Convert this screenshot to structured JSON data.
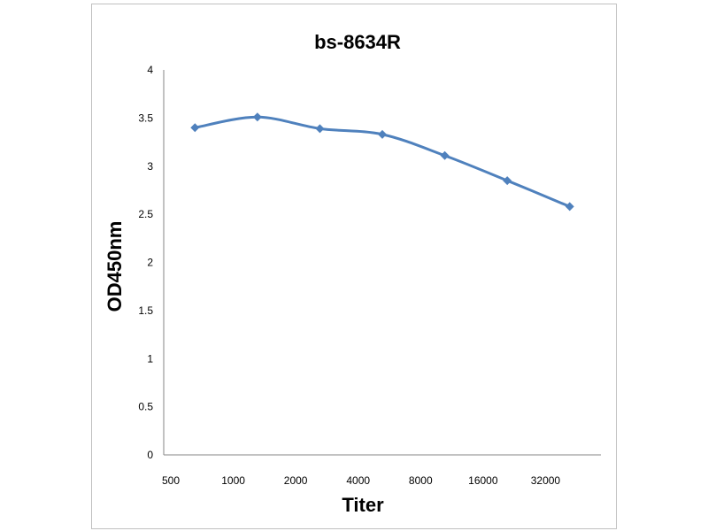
{
  "chart_data": {
    "type": "line",
    "title": "bs-8634R",
    "xlabel": "Titer",
    "ylabel": "OD450nm",
    "categories": [
      "500",
      "1000",
      "2000",
      "4000",
      "8000",
      "16000",
      "32000"
    ],
    "series": [
      {
        "values": [
          3.4,
          3.51,
          3.39,
          3.33,
          3.11,
          2.85,
          2.58
        ]
      }
    ],
    "ylim": [
      0,
      4
    ],
    "yticks": [
      "0",
      "0.5",
      "1",
      "1.5",
      "2",
      "2.5",
      "3",
      "3.5",
      "4"
    ],
    "grid": false,
    "legend": "none",
    "line_color": "#4f81bd"
  }
}
